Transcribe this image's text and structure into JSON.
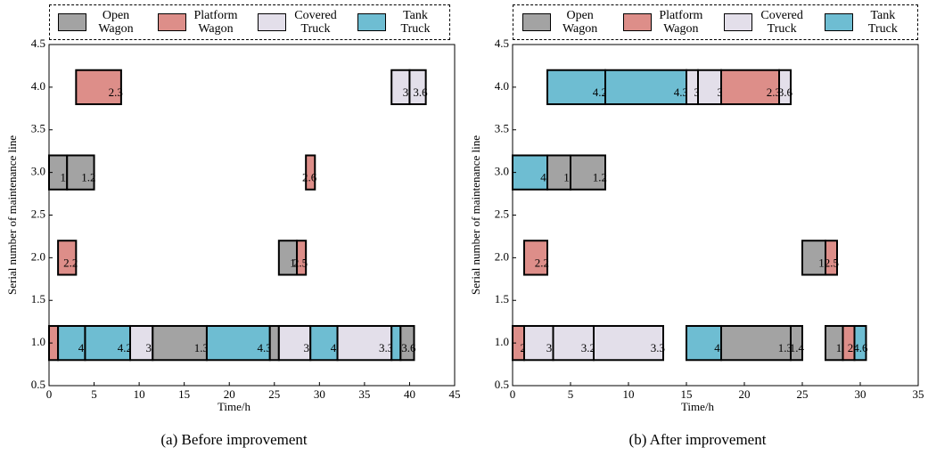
{
  "chart_data": [
    {
      "type": "gantt",
      "caption": "(a) Before improvement",
      "xlabel": "Time/h",
      "ylabel": "Serial number of maintenance line",
      "xlim": [
        0,
        45
      ],
      "xticks": [
        0,
        5,
        10,
        15,
        20,
        25,
        30,
        35,
        40,
        45
      ],
      "ylim": [
        0.5,
        4.5
      ],
      "yticks": [
        0.5,
        {
          "value": 1,
          "label": "1.0"
        },
        1.5,
        {
          "value": 2,
          "label": "2.0"
        },
        2.5,
        {
          "value": 3,
          "label": "3.0"
        },
        3.5,
        {
          "value": 4,
          "label": "4.0"
        },
        4.5
      ],
      "series": [
        {
          "name": "Open Wagon",
          "color": "#a3a3a3"
        },
        {
          "name": "Platform Wagon",
          "color": "#dd8e89"
        },
        {
          "name": "Covered Truck",
          "color": "#e3dfea"
        },
        {
          "name": "Tank Truck",
          "color": "#6ebdd2"
        }
      ],
      "bars": [
        {
          "line": 4,
          "start": 3,
          "end": 8,
          "series": 1,
          "label": "2.3"
        },
        {
          "line": 4,
          "start": 38,
          "end": 40,
          "series": 2,
          "label": "3."
        },
        {
          "line": 4,
          "start": 40,
          "end": 41.8,
          "series": 2,
          "label": "3.6"
        },
        {
          "line": 3,
          "start": 0,
          "end": 2,
          "series": 0,
          "label": "1."
        },
        {
          "line": 3,
          "start": 2,
          "end": 5,
          "series": 0,
          "label": "1.2"
        },
        {
          "line": 3,
          "start": 28.5,
          "end": 29.5,
          "series": 1,
          "label": "2.6"
        },
        {
          "line": 2,
          "start": 1,
          "end": 3,
          "series": 1,
          "label": "2.2"
        },
        {
          "line": 2,
          "start": 25.5,
          "end": 27.5,
          "series": 0,
          "label": "1."
        },
        {
          "line": 2,
          "start": 27.5,
          "end": 28.5,
          "series": 1,
          "label": "2.5"
        },
        {
          "line": 1,
          "start": 0,
          "end": 1,
          "series": 1
        },
        {
          "line": 1,
          "start": 1,
          "end": 4,
          "series": 3,
          "label": "4."
        },
        {
          "line": 1,
          "start": 4,
          "end": 9,
          "series": 3,
          "label": "4.2"
        },
        {
          "line": 1,
          "start": 9,
          "end": 11.5,
          "series": 2,
          "label": "3."
        },
        {
          "line": 1,
          "start": 11.5,
          "end": 17.5,
          "series": 0,
          "label": "1.3"
        },
        {
          "line": 1,
          "start": 17.5,
          "end": 24.5,
          "series": 3,
          "label": "4.3"
        },
        {
          "line": 1,
          "start": 24.5,
          "end": 25.5,
          "series": 0
        },
        {
          "line": 1,
          "start": 25.5,
          "end": 29,
          "series": 2,
          "label": "3."
        },
        {
          "line": 1,
          "start": 29,
          "end": 32,
          "series": 3,
          "label": "4."
        },
        {
          "line": 1,
          "start": 32,
          "end": 38,
          "series": 2,
          "label": "3.3"
        },
        {
          "line": 1,
          "start": 38,
          "end": 39,
          "series": 3
        },
        {
          "line": 1,
          "start": 39,
          "end": 40.5,
          "series": 0,
          "label": "3.6"
        }
      ]
    },
    {
      "type": "gantt",
      "caption": "(b) After improvement",
      "xlabel": "Time/h",
      "ylabel": "Serial number of maintenance line",
      "xlim": [
        0,
        35
      ],
      "xticks": [
        0,
        5,
        10,
        15,
        20,
        25,
        30,
        35
      ],
      "ylim": [
        0.5,
        4.5
      ],
      "yticks": [
        0.5,
        {
          "value": 1,
          "label": "1.0"
        },
        1.5,
        {
          "value": 2,
          "label": "2.0"
        },
        2.5,
        {
          "value": 3,
          "label": "3.0"
        },
        3.5,
        {
          "value": 4,
          "label": "4.0"
        },
        4.5
      ],
      "series": [
        {
          "name": "Open Wagon",
          "color": "#a3a3a3"
        },
        {
          "name": "Platform Wagon",
          "color": "#dd8e89"
        },
        {
          "name": "Covered Truck",
          "color": "#e3dfea"
        },
        {
          "name": "Tank Truck",
          "color": "#6ebdd2"
        }
      ],
      "bars": [
        {
          "line": 4,
          "start": 3,
          "end": 8,
          "series": 3,
          "label": "4.2"
        },
        {
          "line": 4,
          "start": 8,
          "end": 15,
          "series": 3,
          "label": "4.3"
        },
        {
          "line": 4,
          "start": 15,
          "end": 16,
          "series": 2,
          "label": "3"
        },
        {
          "line": 4,
          "start": 16,
          "end": 18,
          "series": 2,
          "label": "3"
        },
        {
          "line": 4,
          "start": 18,
          "end": 23,
          "series": 1,
          "label": "2.3"
        },
        {
          "line": 4,
          "start": 23,
          "end": 24,
          "series": 2,
          "label": "3.6"
        },
        {
          "line": 3,
          "start": 0,
          "end": 3,
          "series": 3,
          "label": "4."
        },
        {
          "line": 3,
          "start": 3,
          "end": 5,
          "series": 0,
          "label": "1."
        },
        {
          "line": 3,
          "start": 5,
          "end": 8,
          "series": 0,
          "label": "1.2"
        },
        {
          "line": 2,
          "start": 1,
          "end": 3,
          "series": 1,
          "label": "2.2"
        },
        {
          "line": 2,
          "start": 25,
          "end": 27,
          "series": 0,
          "label": "1."
        },
        {
          "line": 2,
          "start": 27,
          "end": 28,
          "series": 1,
          "label": "2.5"
        },
        {
          "line": 1,
          "start": 0,
          "end": 1,
          "series": 1,
          "label": "2"
        },
        {
          "line": 1,
          "start": 1,
          "end": 3.5,
          "series": 2,
          "label": "3."
        },
        {
          "line": 1,
          "start": 3.5,
          "end": 7,
          "series": 2,
          "label": "3.2"
        },
        {
          "line": 1,
          "start": 7,
          "end": 13,
          "series": 2,
          "label": "3.3"
        },
        {
          "line": 1,
          "start": 15,
          "end": 18,
          "series": 3,
          "label": "4."
        },
        {
          "line": 1,
          "start": 18,
          "end": 24,
          "series": 0,
          "label": "1.3"
        },
        {
          "line": 1,
          "start": 24,
          "end": 25,
          "series": 0,
          "label": "1.4"
        },
        {
          "line": 1,
          "start": 27,
          "end": 28.5,
          "series": 0,
          "label": "1."
        },
        {
          "line": 1,
          "start": 28.5,
          "end": 29.5,
          "series": 1,
          "label": "2."
        },
        {
          "line": 1,
          "start": 29.5,
          "end": 30.5,
          "series": 3,
          "label": "4.6"
        }
      ]
    }
  ]
}
